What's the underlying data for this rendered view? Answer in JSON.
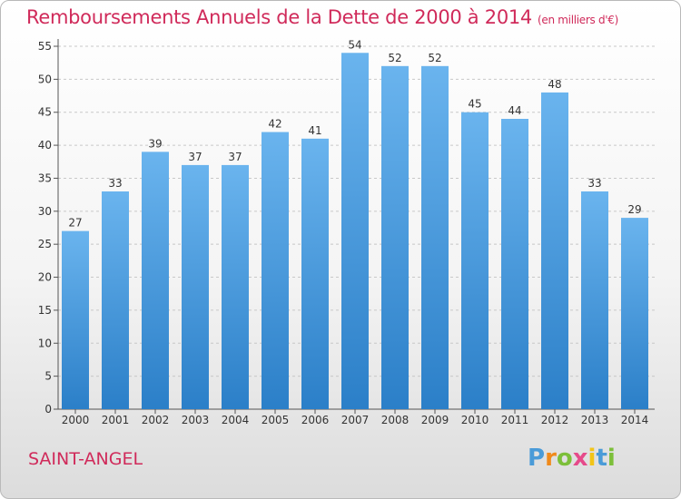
{
  "header": {
    "title": "Remboursements Annuels de la Dette de 2000 à 2014",
    "unit": "(en milliers d'€)"
  },
  "footer": {
    "commune": "SAINT-ANGEL",
    "logo": "Proxiti"
  },
  "colors": {
    "title": "#d02a5a",
    "bar_top": "#6ab4ee",
    "bar_bottom": "#2b7fc8",
    "grid": "#c8c8c8"
  },
  "chart_data": {
    "type": "bar",
    "title": "Remboursements Annuels de la Dette de 2000 à 2014",
    "ylabel": "(en milliers d'€)",
    "xlabel": "",
    "categories": [
      "2000",
      "2001",
      "2002",
      "2003",
      "2004",
      "2005",
      "2006",
      "2007",
      "2008",
      "2009",
      "2010",
      "2011",
      "2012",
      "2013",
      "2014"
    ],
    "values": [
      27,
      33,
      39,
      37,
      37,
      42,
      41,
      54,
      52,
      52,
      45,
      44,
      48,
      33,
      29
    ],
    "ylim": [
      0,
      55
    ],
    "yticks": [
      0,
      5,
      10,
      15,
      20,
      25,
      30,
      35,
      40,
      45,
      50,
      55
    ],
    "grid": true,
    "data_labels": true
  }
}
